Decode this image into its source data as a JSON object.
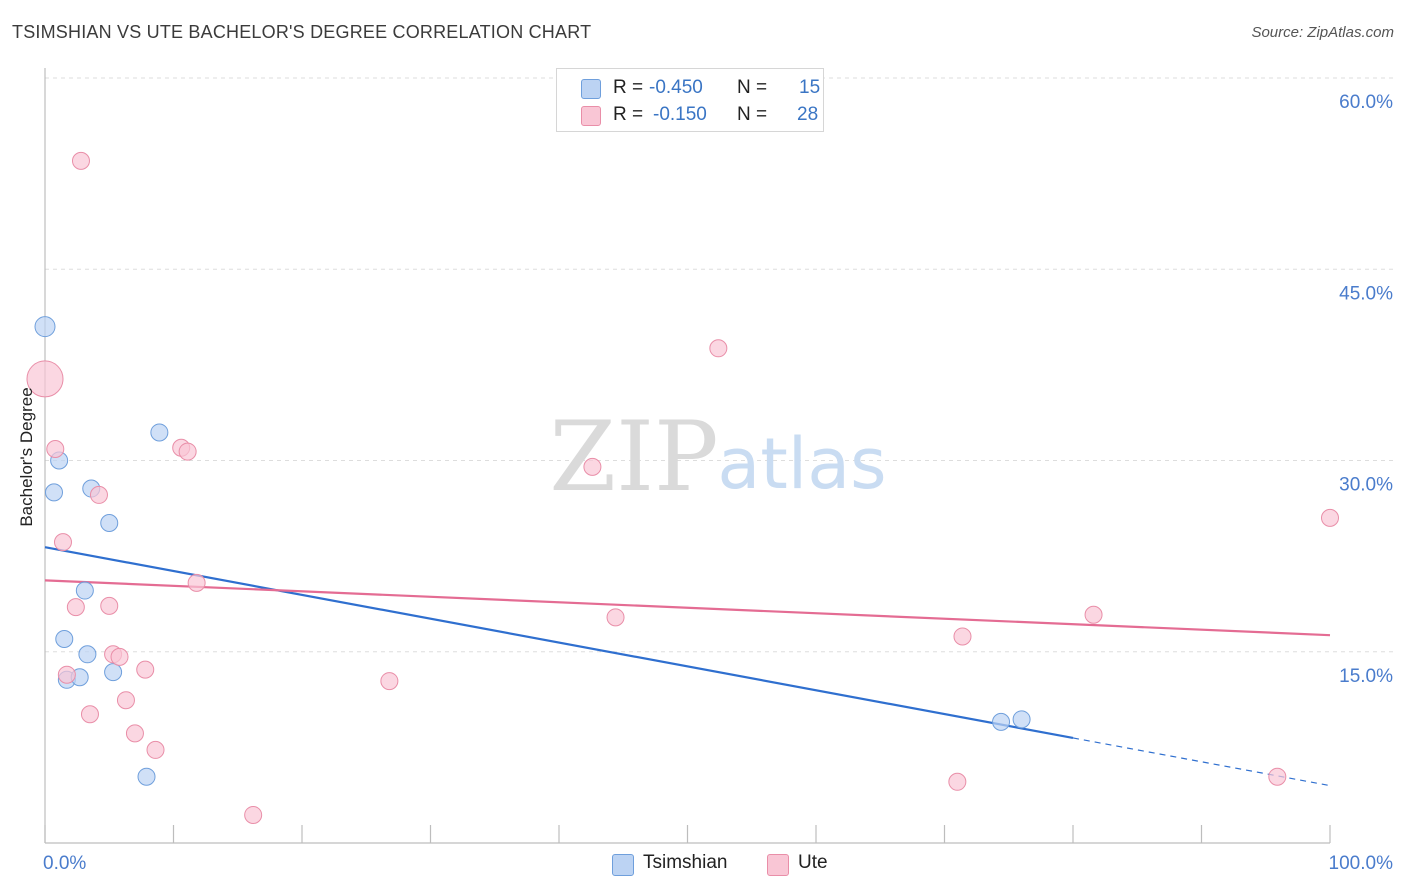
{
  "title": "TSIMSHIAN VS UTE BACHELOR'S DEGREE CORRELATION CHART",
  "source": "Source: ZipAtlas.com",
  "watermark": {
    "zip": "ZIP",
    "atlas": "atlas"
  },
  "legend": {
    "rows": [
      {
        "r_label": "R =",
        "r_value": "-0.450",
        "n_label": "N =",
        "n_value": "15"
      },
      {
        "r_label": "R =",
        "r_value": "-0.150",
        "n_label": "N =",
        "n_value": "28"
      }
    ]
  },
  "colors": {
    "tsimshian_fill": "#bcd3f3",
    "tsimshian_stroke": "#6f9fdc",
    "tsimshian_line": "#2f6fcf",
    "ute_fill": "#f9c6d5",
    "ute_stroke": "#e98ea8",
    "ute_line": "#e46c93",
    "tick_label": "#4a7ccc",
    "grid": "#dddddd"
  },
  "chart_data": {
    "type": "scatter",
    "title": "TSIMSHIAN VS UTE BACHELOR'S DEGREE CORRELATION CHART",
    "xlabel": "",
    "ylabel": "Bachelor's Degree",
    "xlim": [
      0,
      100
    ],
    "ylim": [
      0,
      60
    ],
    "x_tick_labels": [
      "0.0%",
      "100.0%"
    ],
    "y_ticks": [
      15,
      30,
      45,
      60
    ],
    "y_tick_labels": [
      "15.0%",
      "30.0%",
      "45.0%",
      "60.0%"
    ],
    "grid": true,
    "series": [
      {
        "name": "Tsimshian",
        "points": [
          {
            "x": 0.0,
            "y": 40.5
          },
          {
            "x": 1.1,
            "y": 30.0
          },
          {
            "x": 0.7,
            "y": 27.5
          },
          {
            "x": 3.6,
            "y": 27.8
          },
          {
            "x": 5.0,
            "y": 25.1
          },
          {
            "x": 8.9,
            "y": 32.2
          },
          {
            "x": 3.1,
            "y": 19.8
          },
          {
            "x": 1.5,
            "y": 16.0
          },
          {
            "x": 3.3,
            "y": 14.8
          },
          {
            "x": 1.7,
            "y": 12.8
          },
          {
            "x": 2.7,
            "y": 13.0
          },
          {
            "x": 5.3,
            "y": 13.4
          },
          {
            "x": 7.9,
            "y": 5.2
          },
          {
            "x": 74.4,
            "y": 9.5
          },
          {
            "x": 76.0,
            "y": 9.7
          }
        ],
        "trend": {
          "x_start": 0,
          "y_start": 23.2,
          "x_solid_end": 80,
          "x_end": 100,
          "y_end": 4.5
        }
      },
      {
        "name": "Ute",
        "points": [
          {
            "x": 2.8,
            "y": 53.5
          },
          {
            "x": 0.0,
            "y": 36.4
          },
          {
            "x": 0.8,
            "y": 30.9
          },
          {
            "x": 10.6,
            "y": 31.0
          },
          {
            "x": 11.1,
            "y": 30.7
          },
          {
            "x": 4.2,
            "y": 27.3
          },
          {
            "x": 1.4,
            "y": 23.6
          },
          {
            "x": 11.8,
            "y": 20.4
          },
          {
            "x": 2.4,
            "y": 18.5
          },
          {
            "x": 5.0,
            "y": 18.6
          },
          {
            "x": 5.3,
            "y": 14.8
          },
          {
            "x": 5.8,
            "y": 14.6
          },
          {
            "x": 7.8,
            "y": 13.6
          },
          {
            "x": 1.7,
            "y": 13.2
          },
          {
            "x": 6.3,
            "y": 11.2
          },
          {
            "x": 3.5,
            "y": 10.1
          },
          {
            "x": 7.0,
            "y": 8.6
          },
          {
            "x": 8.6,
            "y": 7.3
          },
          {
            "x": 16.2,
            "y": 2.2
          },
          {
            "x": 26.8,
            "y": 12.7
          },
          {
            "x": 42.6,
            "y": 29.5
          },
          {
            "x": 44.4,
            "y": 17.7
          },
          {
            "x": 52.4,
            "y": 38.8
          },
          {
            "x": 71.0,
            "y": 4.8
          },
          {
            "x": 71.4,
            "y": 16.2
          },
          {
            "x": 81.6,
            "y": 17.9
          },
          {
            "x": 95.9,
            "y": 5.2
          },
          {
            "x": 100.0,
            "y": 25.5
          }
        ],
        "trend": {
          "x_start": 0,
          "y_start": 20.6,
          "x_solid_end": 100,
          "x_end": 100,
          "y_end": 16.3
        }
      }
    ]
  },
  "bottom_legend": [
    "Tsimshian",
    "Ute"
  ]
}
